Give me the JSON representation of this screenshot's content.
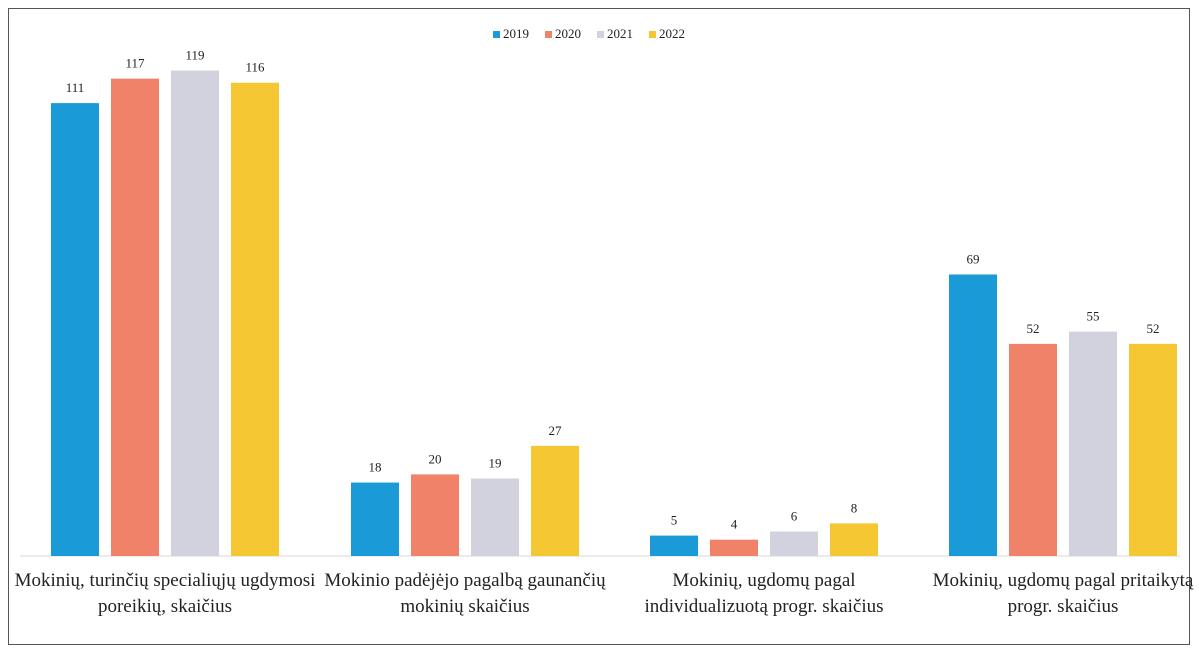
{
  "chart_data": {
    "type": "bar",
    "categories": [
      "Mokinių, turinčių specialiųjų ugdymosi poreikių, skaičius",
      "Mokinio padėjėjo pagalbą gaunančių mokinių skaičius",
      "Mokinių, ugdomų pagal individualizuotą progr. skaičius",
      "Mokinių, ugdomų pagal pritaikytą progr. skaičius"
    ],
    "series": [
      {
        "name": "2019",
        "color": "#1a9bd7",
        "values": [
          111,
          18,
          5,
          69
        ]
      },
      {
        "name": "2020",
        "color": "#f0826a",
        "values": [
          117,
          20,
          4,
          52
        ]
      },
      {
        "name": "2021",
        "color": "#d2d2de",
        "values": [
          119,
          19,
          6,
          55
        ]
      },
      {
        "name": "2022",
        "color": "#f5c833",
        "values": [
          116,
          27,
          8,
          52
        ]
      }
    ],
    "legend": "top"
  }
}
